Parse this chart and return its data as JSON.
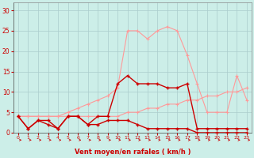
{
  "x": [
    0,
    1,
    2,
    3,
    4,
    5,
    6,
    7,
    8,
    9,
    10,
    11,
    12,
    13,
    14,
    15,
    16,
    17,
    18,
    19,
    20,
    21,
    22,
    23
  ],
  "line_pink_upper": [
    4,
    4,
    4,
    4,
    4,
    5,
    6,
    7,
    8,
    9,
    11,
    25,
    25,
    23,
    25,
    26,
    25,
    19,
    12,
    5,
    5,
    5,
    14,
    8
  ],
  "line_pink_flat": [
    4,
    4,
    4,
    4,
    4,
    4,
    4,
    4,
    4,
    4,
    4,
    5,
    5,
    6,
    6,
    7,
    7,
    8,
    8,
    9,
    9,
    10,
    10,
    11
  ],
  "line_dark_red": [
    4,
    1,
    3,
    3,
    1,
    4,
    4,
    2,
    4,
    4,
    12,
    14,
    12,
    12,
    12,
    11,
    11,
    12,
    1,
    1,
    1,
    1,
    1,
    1
  ],
  "line_dark_red2": [
    4,
    1,
    3,
    2,
    1,
    4,
    4,
    2,
    2,
    3,
    3,
    3,
    2,
    1,
    1,
    1,
    1,
    1,
    0,
    0,
    0,
    0,
    0,
    0
  ],
  "bg_color": "#cceee8",
  "grid_color": "#aacccc",
  "line_pink_color": "#ff9999",
  "line_dark_color": "#cc0000",
  "xlabel": "Vent moyen/en rafales ( km/h )",
  "ylim": [
    0,
    32
  ],
  "xlim_min": -0.5,
  "xlim_max": 23.5,
  "yticks": [
    0,
    5,
    10,
    15,
    20,
    25,
    30
  ],
  "xticks": [
    0,
    1,
    2,
    3,
    4,
    5,
    6,
    7,
    8,
    9,
    10,
    11,
    12,
    13,
    14,
    15,
    16,
    17,
    18,
    19,
    20,
    21,
    22,
    23
  ]
}
